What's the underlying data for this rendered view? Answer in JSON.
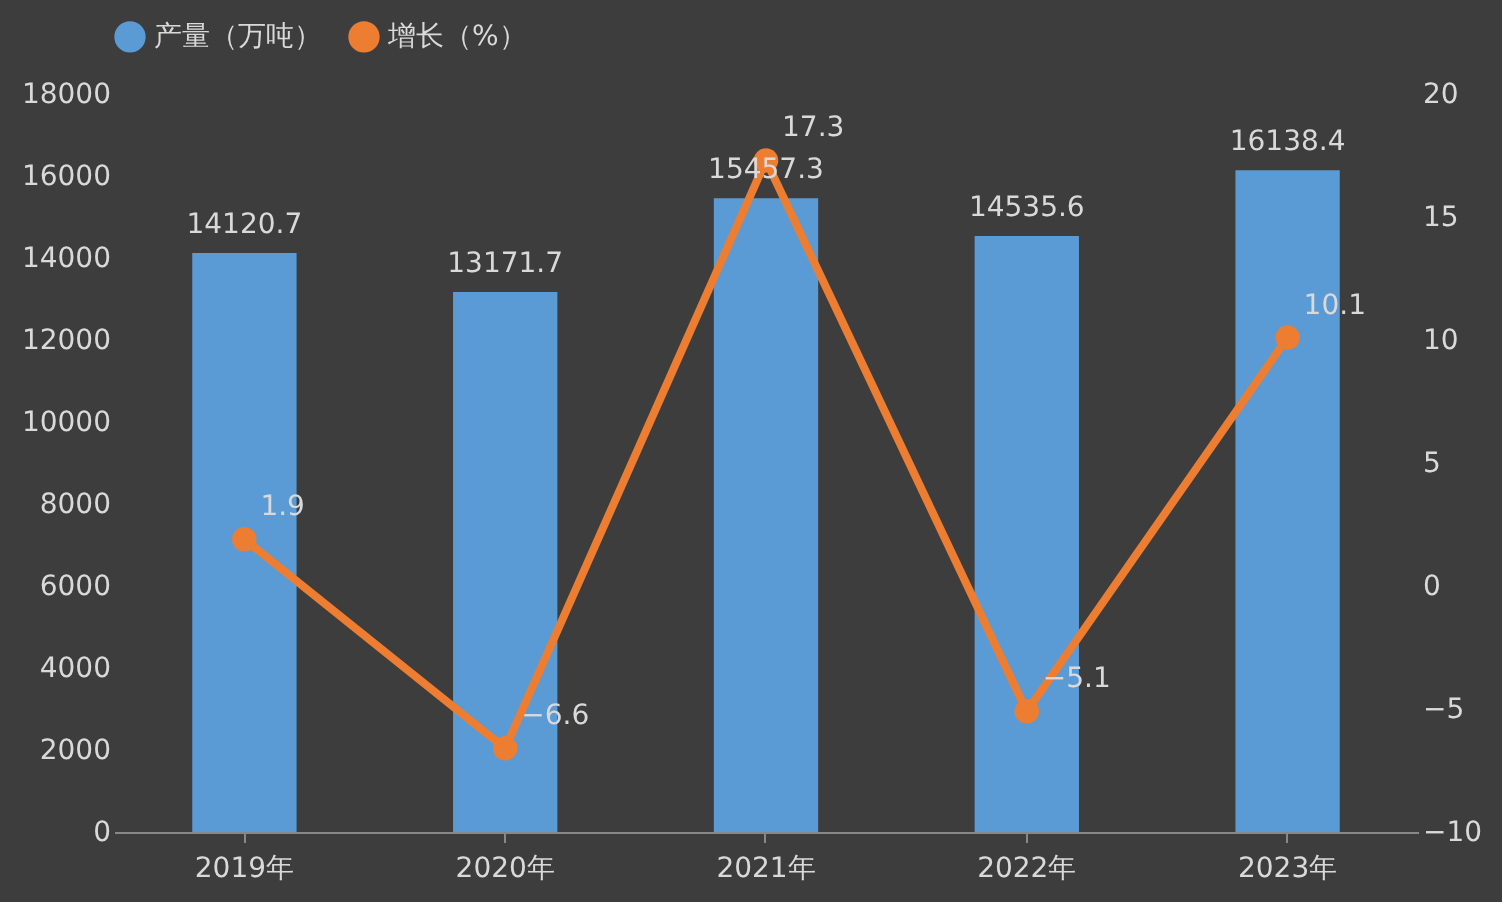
{
  "chart_data": {
    "type": "bar",
    "categories": [
      "2019年",
      "2020年",
      "2021年",
      "2022年",
      "2023年"
    ],
    "series": [
      {
        "name": "产量（万吨）",
        "color": "#5b9bd5",
        "values": [
          14120.7,
          13171.7,
          15457.3,
          14535.6,
          16138.4
        ]
      },
      {
        "name": "增长（%）",
        "type": "line",
        "axis": "y2",
        "color": "#ed7d31",
        "values": [
          1.9,
          -6.6,
          17.3,
          -5.1,
          10.1
        ]
      }
    ],
    "ylim": [
      0,
      18000
    ],
    "yticks": [
      0,
      2000,
      4000,
      6000,
      8000,
      10000,
      12000,
      14000,
      16000,
      18000
    ],
    "y2lim": [
      -10,
      20
    ],
    "y2ticks": [
      -10,
      -5,
      0,
      5,
      10,
      15,
      20
    ],
    "data_labels": true,
    "legend": "top",
    "grid": false,
    "marker": "circle"
  }
}
